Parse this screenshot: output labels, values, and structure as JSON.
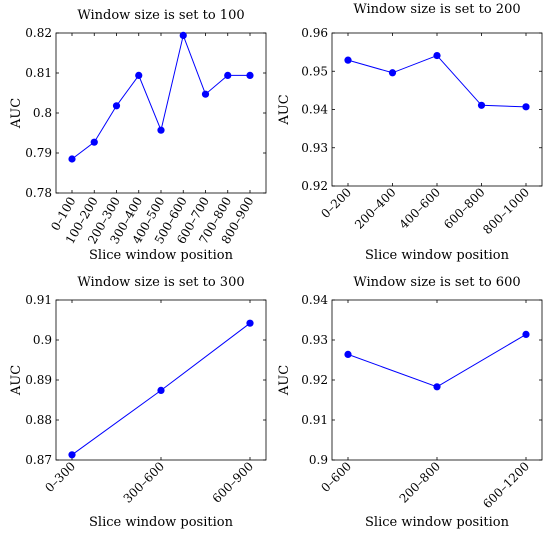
{
  "chart_data": [
    {
      "type": "line",
      "title": "Window size is set to 100",
      "xlabel": "Slice window position",
      "ylabel": "AUC",
      "categories": [
        "0–100",
        "100–200",
        "200–300",
        "300–400",
        "400–500",
        "500–600",
        "600–700",
        "700–800",
        "800–900"
      ],
      "series": [
        {
          "values": [
            0.7885,
            0.7927,
            0.8018,
            0.8094,
            0.7957,
            0.8194,
            0.8047,
            0.8094,
            0.8094
          ]
        }
      ],
      "ylim": [
        0.78,
        0.82
      ],
      "yticks": [
        "0.78",
        "0.79",
        "0.8",
        "0.81",
        "0.82"
      ],
      "color": "#0000ff"
    },
    {
      "type": "line",
      "title": "Window size is set to 200",
      "xlabel": "Slice window position",
      "ylabel": "AUC",
      "categories": [
        "0–200",
        "200–400",
        "400–600",
        "600–800",
        "800–1000"
      ],
      "series": [
        {
          "values": [
            0.9529,
            0.9496,
            0.9541,
            0.9411,
            0.9407
          ]
        }
      ],
      "ylim": [
        0.92,
        0.96
      ],
      "yticks": [
        "0.92",
        "0.93",
        "0.94",
        "0.95",
        "0.96"
      ],
      "color": "#0000ff"
    },
    {
      "type": "line",
      "title": "Window size is set to 300",
      "xlabel": "Slice window position",
      "ylabel": "AUC",
      "categories": [
        "0–300",
        "300–600",
        "600–900"
      ],
      "series": [
        {
          "values": [
            0.8713,
            0.8874,
            0.9042
          ]
        }
      ],
      "ylim": [
        0.87,
        0.91
      ],
      "yticks": [
        "0.87",
        "0.88",
        "0.89",
        "0.9",
        "0.91"
      ],
      "color": "#0000ff"
    },
    {
      "type": "line",
      "title": "Window size is set to 600",
      "xlabel": "Slice window position",
      "ylabel": "AUC",
      "categories": [
        "0–600",
        "200–800",
        "600–1200"
      ],
      "series": [
        {
          "values": [
            0.9264,
            0.9183,
            0.9314
          ]
        }
      ],
      "ylim": [
        0.9,
        0.94
      ],
      "yticks": [
        "0.9",
        "0.91",
        "0.92",
        "0.93",
        "0.94"
      ],
      "color": "#0000ff"
    }
  ]
}
